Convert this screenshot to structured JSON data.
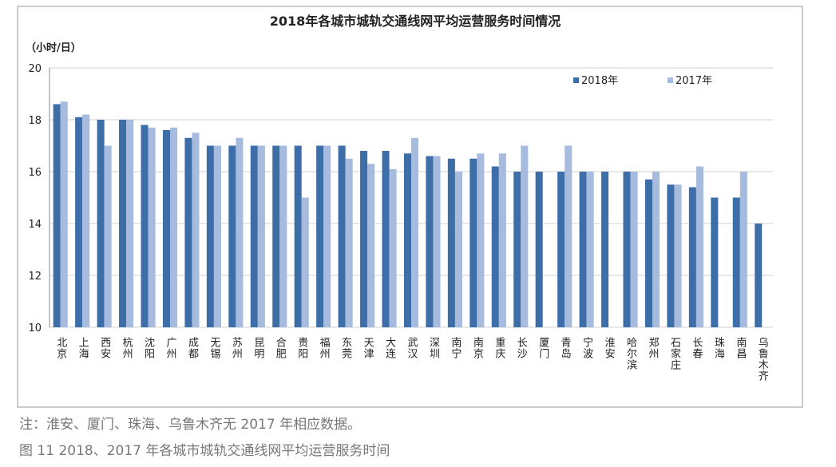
{
  "chart_data": {
    "type": "bar",
    "title": "2018年各城市城轨交通线网平均运营服务时间情况",
    "y_label": "（小时/日）",
    "categories": [
      "北京",
      "上海",
      "西安",
      "杭州",
      "沈阳",
      "广州",
      "成都",
      "无锡",
      "苏州",
      "昆明",
      "合肥",
      "贵阳",
      "福州",
      "东莞",
      "天津",
      "大连",
      "武汉",
      "深圳",
      "南宁",
      "南京",
      "重庆",
      "长沙",
      "厦门",
      "青岛",
      "宁波",
      "淮安",
      "哈尔滨",
      "郑州",
      "石家庄",
      "长春",
      "珠海",
      "南昌",
      "乌鲁木齐"
    ],
    "series": [
      {
        "name": "2018年",
        "color": "#3e6ea8",
        "values": [
          18.6,
          18.1,
          18.0,
          18.0,
          17.8,
          17.6,
          17.3,
          17.0,
          17.0,
          17.0,
          17.0,
          17.0,
          17.0,
          17.0,
          16.8,
          16.8,
          16.7,
          16.6,
          16.5,
          16.5,
          16.2,
          16.0,
          16.0,
          16.0,
          16.0,
          16.0,
          16.0,
          15.7,
          15.5,
          15.4,
          15.0,
          15.0,
          14.0
        ]
      },
      {
        "name": "2017年",
        "color": "#a7bbdf",
        "values": [
          18.7,
          18.2,
          17.0,
          18.0,
          17.7,
          17.7,
          17.5,
          17.0,
          17.3,
          17.0,
          17.0,
          15.0,
          17.0,
          16.5,
          16.3,
          16.1,
          17.3,
          16.6,
          16.0,
          16.7,
          16.7,
          17.0,
          null,
          17.0,
          16.0,
          null,
          16.0,
          16.0,
          15.5,
          16.2,
          null,
          16.0,
          null
        ]
      }
    ],
    "ylim": [
      10,
      20
    ],
    "yticks": [
      10,
      12,
      14,
      16,
      18,
      20
    ],
    "grid": true,
    "legend": "top-right",
    "notes": [
      "注：淮安、厦门、珠海、乌鲁木齐无 2017 年相应数据。",
      "图 11  2018、2017 年各城市城轨交通线网平均运营服务时间"
    ]
  }
}
